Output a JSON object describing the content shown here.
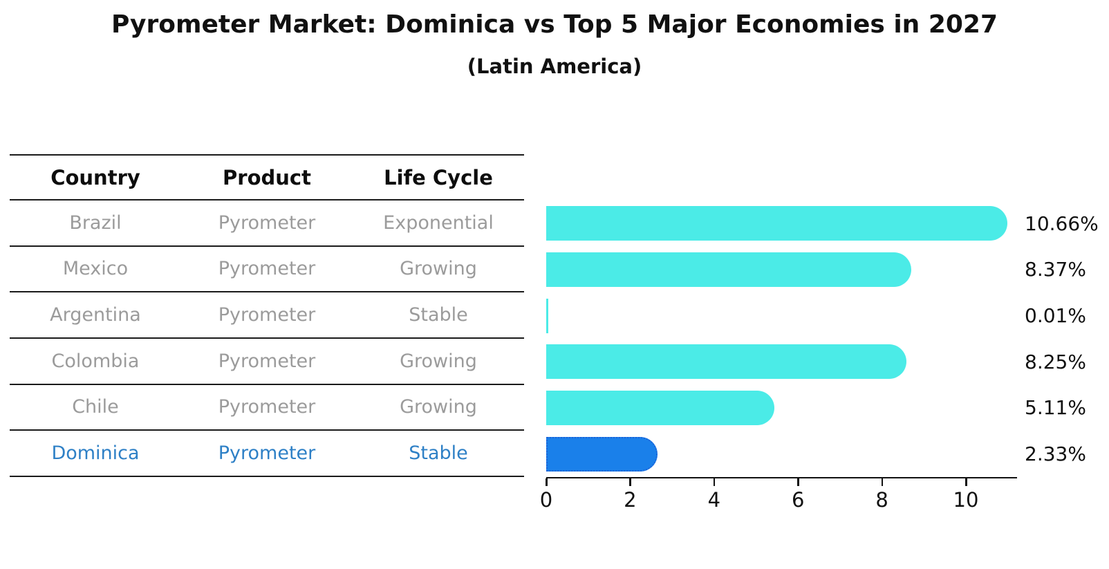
{
  "title": "Pyrometer Market: Dominica vs Top 5 Major Economies in 2027",
  "subtitle": "(Latin America)",
  "table": {
    "headers": [
      "Country",
      "Product",
      "Life Cycle"
    ],
    "rows": [
      {
        "country": "Brazil",
        "product": "Pyrometer",
        "life_cycle": "Exponential",
        "highlight": false
      },
      {
        "country": "Mexico",
        "product": "Pyrometer",
        "life_cycle": "Growing",
        "highlight": false
      },
      {
        "country": "Argentina",
        "product": "Pyrometer",
        "life_cycle": "Stable",
        "highlight": false
      },
      {
        "country": "Colombia",
        "product": "Pyrometer",
        "life_cycle": "Growing",
        "highlight": false
      },
      {
        "country": "Chile",
        "product": "Pyrometer",
        "life_cycle": "Growing",
        "highlight": false
      },
      {
        "country": "Dominica",
        "product": "Pyrometer",
        "life_cycle": "Stable",
        "highlight": true
      }
    ]
  },
  "chart_data": {
    "type": "bar",
    "orientation": "horizontal",
    "title": "Pyrometer Market: Dominica vs Top 5 Major Economies in 2027",
    "subtitle": "(Latin America)",
    "categories": [
      "Brazil",
      "Mexico",
      "Argentina",
      "Colombia",
      "Chile",
      "Dominica"
    ],
    "values": [
      10.66,
      8.37,
      0.01,
      8.25,
      5.11,
      2.33
    ],
    "value_labels": [
      "10.66%",
      "8.37%",
      "0.01%",
      "8.25%",
      "5.11%",
      "2.33%"
    ],
    "value_suffix": "%",
    "x_ticks": [
      0,
      2,
      4,
      6,
      8,
      10
    ],
    "xlim": [
      0,
      11.2
    ],
    "xlabel": "",
    "ylabel": "",
    "grid": false,
    "legend": false,
    "bar_color": "#4bebe7",
    "highlight_index": 5,
    "highlight_bar_color": "#1a80ea",
    "highlight_bar_border": "#1b62d8"
  },
  "colors": {
    "background": "#ffffff",
    "bar_cyan": "#4bebe7",
    "bar_blue": "#1a80ea",
    "bar_blue_border": "#1b62d8",
    "highlight_text": "#2e80c6",
    "muted_text": "#9b9b9b",
    "text": "#111111",
    "line": "#1a1a1a"
  }
}
